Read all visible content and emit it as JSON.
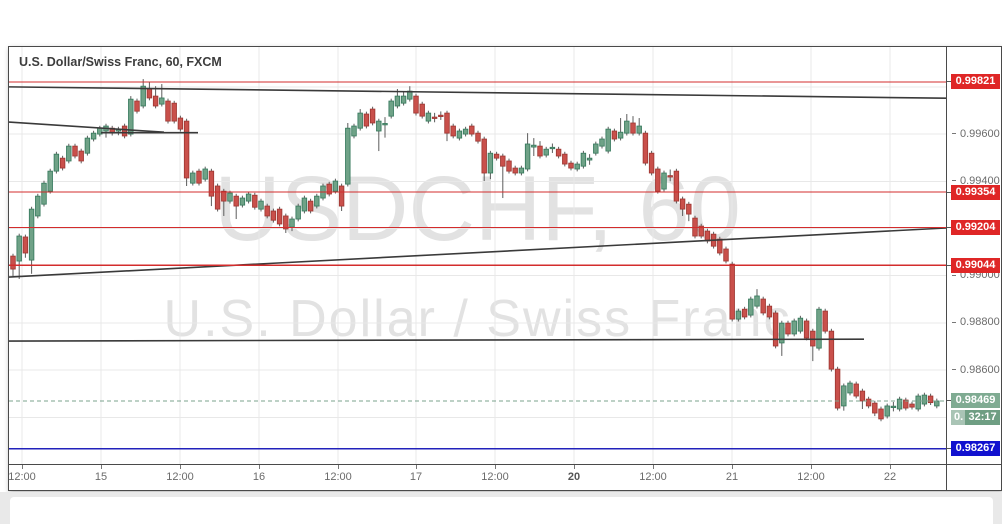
{
  "header": {
    "title": "U.S. Dollar/Swiss Franc, 60, FXCM"
  },
  "watermark": {
    "line1": "USDCHF, 60",
    "line2": "U.S. Dollar / Swiss Franc"
  },
  "colors": {
    "grid": "#e8e8e8",
    "wick": "#5c5c5c",
    "up_fill": "#6fa287",
    "up_border": "#33775a",
    "down_fill": "#c9504b",
    "down_border": "#9c3530",
    "trendline": "#3a3a3a",
    "level_red": "#d32c2c",
    "level_blue": "#2222bb",
    "current_dash": "#7ba38e",
    "badge_red": "#df2626",
    "badge_green": "#7fab92",
    "badge_blue": "#1111cf",
    "countdown_bg": "#a9c4b5",
    "countdown_box": "#6f9e83",
    "axis_text": "#6b6b6b"
  },
  "chart_data": {
    "type": "candlestick",
    "title": "U.S. Dollar/Swiss Franc, 60, FXCM",
    "symbol": "USDCHF",
    "timeframe": "60",
    "exchange": "FXCM",
    "ylim": [
      0.98202,
      0.99969
    ],
    "grid": {
      "h_prices": [
        0.998,
        0.996,
        0.994,
        0.992,
        0.99,
        0.988,
        0.986,
        0.984
      ],
      "v_x": [
        13,
        92,
        171,
        250,
        329,
        407,
        486,
        565,
        644,
        723,
        802,
        881
      ]
    },
    "price_axis_labels": [
      {
        "text": "0.99800",
        "price": 0.998
      },
      {
        "text": "0.99600",
        "price": 0.996
      },
      {
        "text": "0.99400",
        "price": 0.994
      },
      {
        "text": "0.99200",
        "price": 0.992
      },
      {
        "text": "0.99000",
        "price": 0.99
      },
      {
        "text": "0.98800",
        "price": 0.988
      },
      {
        "text": "0.98600",
        "price": 0.986
      },
      {
        "text": "0.98400",
        "price": 0.984
      }
    ],
    "time_axis_labels": [
      {
        "text": "12:00",
        "x": 13,
        "bold": false
      },
      {
        "text": "15",
        "x": 92,
        "bold": false
      },
      {
        "text": "12:00",
        "x": 171,
        "bold": false
      },
      {
        "text": "16",
        "x": 250,
        "bold": false
      },
      {
        "text": "12:00",
        "x": 329,
        "bold": false
      },
      {
        "text": "17",
        "x": 407,
        "bold": false
      },
      {
        "text": "12:00",
        "x": 486,
        "bold": false
      },
      {
        "text": "20",
        "x": 565,
        "bold": true
      },
      {
        "text": "12:00",
        "x": 644,
        "bold": false
      },
      {
        "text": "21",
        "x": 723,
        "bold": false
      },
      {
        "text": "12:00",
        "x": 802,
        "bold": false
      },
      {
        "text": "22",
        "x": 881,
        "bold": false
      }
    ],
    "levels": [
      {
        "price": 0.99821,
        "style": "red"
      },
      {
        "price": 0.99354,
        "style": "red"
      },
      {
        "price": 0.99204,
        "style": "red"
      },
      {
        "price": 0.99044,
        "style": "red"
      },
      {
        "price": 0.98267,
        "style": "blue"
      },
      {
        "price": 0.98469,
        "style": "current"
      }
    ],
    "badges": [
      {
        "label": "0.99821",
        "price": 0.99821,
        "style": "red"
      },
      {
        "label": "0.99354",
        "price": 0.99354,
        "style": "red"
      },
      {
        "label": "0.99204",
        "price": 0.99204,
        "style": "red"
      },
      {
        "label": "0.99044",
        "price": 0.99044,
        "style": "red"
      },
      {
        "label": "0.98469",
        "price": 0.98469,
        "style": "green"
      },
      {
        "label": "0.98267",
        "price": 0.98267,
        "style": "blue"
      }
    ],
    "current": {
      "price": 0.98469,
      "countdown": "32:17",
      "partial_label": "0.",
      "countdown_price": 0.98397
    },
    "trendlines": [
      {
        "x1": 0,
        "p1": 0.998,
        "x2": 937,
        "p2": 0.99752
      },
      {
        "x1": 0,
        "p1": 0.99651,
        "x2": 155,
        "p2": 0.99608
      },
      {
        "x1": 92,
        "p1": 0.99606,
        "x2": 189,
        "p2": 0.99606
      },
      {
        "x1": 0,
        "p1": 0.98994,
        "x2": 937,
        "p2": 0.99202
      },
      {
        "x1": 0,
        "p1": 0.98723,
        "x2": 855,
        "p2": 0.98731
      }
    ],
    "candle_layout": {
      "x0": 4,
      "dx": 6.2,
      "body_w": 4.6
    },
    "ohlc": [
      [
        0.99083,
        0.99093,
        0.98998,
        0.99028
      ],
      [
        0.99062,
        0.99178,
        0.98986,
        0.99168
      ],
      [
        0.99164,
        0.99174,
        0.99076,
        0.99096
      ],
      [
        0.99066,
        0.99292,
        0.99008,
        0.99282
      ],
      [
        0.99253,
        0.99347,
        0.99243,
        0.99337
      ],
      [
        0.99303,
        0.99402,
        0.99293,
        0.99392
      ],
      [
        0.99358,
        0.99453,
        0.99348,
        0.99443
      ],
      [
        0.99443,
        0.99525,
        0.99433,
        0.99515
      ],
      [
        0.99498,
        0.99508,
        0.99446,
        0.99456
      ],
      [
        0.99486,
        0.99559,
        0.99476,
        0.99549
      ],
      [
        0.99549,
        0.99559,
        0.99497,
        0.99507
      ],
      [
        0.99528,
        0.99538,
        0.99476,
        0.99486
      ],
      [
        0.99519,
        0.99593,
        0.99509,
        0.99583
      ],
      [
        0.99579,
        0.99614,
        0.99569,
        0.99604
      ],
      [
        0.996,
        0.99635,
        0.9959,
        0.99625
      ],
      [
        0.99613,
        0.99644,
        0.99585,
        0.99634
      ],
      [
        0.99625,
        0.99635,
        0.99594,
        0.99604
      ],
      [
        0.99613,
        0.99631,
        0.99595,
        0.99621
      ],
      [
        0.99634,
        0.99644,
        0.99582,
        0.99592
      ],
      [
        0.996,
        0.99761,
        0.9959,
        0.99748
      ],
      [
        0.9974,
        0.9975,
        0.99687,
        0.99697
      ],
      [
        0.99719,
        0.99833,
        0.99709,
        0.99803
      ],
      [
        0.99791,
        0.99821,
        0.99743,
        0.99753
      ],
      [
        0.99761,
        0.99803,
        0.99709,
        0.99719
      ],
      [
        0.99727,
        0.99812,
        0.99717,
        0.99753
      ],
      [
        0.9974,
        0.9975,
        0.99645,
        0.99655
      ],
      [
        0.99731,
        0.99741,
        0.99645,
        0.99655
      ],
      [
        0.99668,
        0.99678,
        0.99611,
        0.99621
      ],
      [
        0.99655,
        0.99665,
        0.9938,
        0.99414
      ],
      [
        0.99392,
        0.99445,
        0.99382,
        0.99435
      ],
      [
        0.99443,
        0.99453,
        0.99382,
        0.99392
      ],
      [
        0.99409,
        0.99462,
        0.99399,
        0.99452
      ],
      [
        0.99443,
        0.99453,
        0.99295,
        0.99337
      ],
      [
        0.9938,
        0.9939,
        0.99272,
        0.99282
      ],
      [
        0.99358,
        0.99368,
        0.99253,
        0.99316
      ],
      [
        0.99316,
        0.9936,
        0.99306,
        0.9935
      ],
      [
        0.99337,
        0.99347,
        0.9924,
        0.99295
      ],
      [
        0.99299,
        0.99339,
        0.99289,
        0.99329
      ],
      [
        0.99316,
        0.99356,
        0.99306,
        0.99346
      ],
      [
        0.99341,
        0.99351,
        0.9928,
        0.9929
      ],
      [
        0.99282,
        0.99326,
        0.99272,
        0.99316
      ],
      [
        0.99295,
        0.99305,
        0.99243,
        0.99253
      ],
      [
        0.99274,
        0.99284,
        0.99225,
        0.99235
      ],
      [
        0.99282,
        0.99292,
        0.99209,
        0.99219
      ],
      [
        0.99253,
        0.99263,
        0.99181,
        0.99198
      ],
      [
        0.99206,
        0.9925,
        0.99189,
        0.9924
      ],
      [
        0.9924,
        0.99305,
        0.9923,
        0.99295
      ],
      [
        0.99274,
        0.99339,
        0.99264,
        0.99329
      ],
      [
        0.99316,
        0.99326,
        0.99264,
        0.99274
      ],
      [
        0.99295,
        0.99347,
        0.99285,
        0.99337
      ],
      [
        0.99329,
        0.9939,
        0.99319,
        0.9938
      ],
      [
        0.99388,
        0.99398,
        0.99336,
        0.99346
      ],
      [
        0.99358,
        0.99411,
        0.99348,
        0.99401
      ],
      [
        0.9938,
        0.9939,
        0.99274,
        0.99295
      ],
      [
        0.99388,
        0.99647,
        0.99378,
        0.99625
      ],
      [
        0.99592,
        0.99644,
        0.99582,
        0.99634
      ],
      [
        0.99625,
        0.99706,
        0.99615,
        0.99689
      ],
      [
        0.99685,
        0.99695,
        0.99624,
        0.99634
      ],
      [
        0.99706,
        0.99716,
        0.99637,
        0.99647
      ],
      [
        0.99613,
        0.99665,
        0.99528,
        0.99655
      ],
      [
        0.9964,
        0.99672,
        0.99585,
        0.99645
      ],
      [
        0.99676,
        0.9975,
        0.99666,
        0.9974
      ],
      [
        0.99719,
        0.99791,
        0.99709,
        0.99761
      ],
      [
        0.99731,
        0.99782,
        0.99721,
        0.99761
      ],
      [
        0.99748,
        0.99803,
        0.99738,
        0.99782
      ],
      [
        0.99761,
        0.99771,
        0.99679,
        0.99689
      ],
      [
        0.99727,
        0.99737,
        0.99666,
        0.99676
      ],
      [
        0.99655,
        0.99699,
        0.99645,
        0.99689
      ],
      [
        0.99672,
        0.9969,
        0.9965,
        0.99668
      ],
      [
        0.9968,
        0.99696,
        0.9966,
        0.99676
      ],
      [
        0.99689,
        0.99699,
        0.9957,
        0.99604
      ],
      [
        0.99634,
        0.99644,
        0.99582,
        0.99592
      ],
      [
        0.99583,
        0.99623,
        0.99573,
        0.99613
      ],
      [
        0.996,
        0.99631,
        0.9959,
        0.99621
      ],
      [
        0.99634,
        0.99644,
        0.9959,
        0.996
      ],
      [
        0.99604,
        0.99614,
        0.9956,
        0.9957
      ],
      [
        0.99579,
        0.99589,
        0.99401,
        0.99435
      ],
      [
        0.99435,
        0.99529,
        0.99409,
        0.99519
      ],
      [
        0.99515,
        0.99525,
        0.99488,
        0.99498
      ],
      [
        0.99507,
        0.99517,
        0.99329,
        0.99464
      ],
      [
        0.99486,
        0.99496,
        0.99433,
        0.99443
      ],
      [
        0.99456,
        0.99466,
        0.99425,
        0.99435
      ],
      [
        0.99435,
        0.99466,
        0.99425,
        0.99456
      ],
      [
        0.99452,
        0.99604,
        0.99442,
        0.99558
      ],
      [
        0.99545,
        0.99583,
        0.99507,
        0.99553
      ],
      [
        0.99549,
        0.9957,
        0.99497,
        0.99507
      ],
      [
        0.99511,
        0.99546,
        0.99501,
        0.99536
      ],
      [
        0.99538,
        0.9956,
        0.9952,
        0.99544
      ],
      [
        0.99536,
        0.99546,
        0.99497,
        0.99507
      ],
      [
        0.99515,
        0.99525,
        0.99463,
        0.99473
      ],
      [
        0.99477,
        0.99487,
        0.99446,
        0.99456
      ],
      [
        0.99452,
        0.99483,
        0.99442,
        0.99473
      ],
      [
        0.99464,
        0.99529,
        0.99454,
        0.99519
      ],
      [
        0.9949,
        0.99515,
        0.9947,
        0.99498
      ],
      [
        0.99519,
        0.99568,
        0.99509,
        0.99558
      ],
      [
        0.99549,
        0.99589,
        0.99539,
        0.99579
      ],
      [
        0.99528,
        0.99631,
        0.99518,
        0.99621
      ],
      [
        0.99613,
        0.99623,
        0.99569,
        0.99579
      ],
      [
        0.99583,
        0.99668,
        0.99573,
        0.99608
      ],
      [
        0.99604,
        0.99685,
        0.99594,
        0.99655
      ],
      [
        0.99647,
        0.99676,
        0.99594,
        0.99604
      ],
      [
        0.99604,
        0.99668,
        0.99594,
        0.99634
      ],
      [
        0.99604,
        0.99614,
        0.99467,
        0.99477
      ],
      [
        0.99519,
        0.99529,
        0.99425,
        0.99435
      ],
      [
        0.99452,
        0.99462,
        0.99348,
        0.99358
      ],
      [
        0.99367,
        0.99445,
        0.99357,
        0.99435
      ],
      [
        0.99424,
        0.9945,
        0.994,
        0.9942
      ],
      [
        0.99443,
        0.99453,
        0.99306,
        0.99316
      ],
      [
        0.99325,
        0.99335,
        0.99253,
        0.99282
      ],
      [
        0.99303,
        0.99313,
        0.99231,
        0.99261
      ],
      [
        0.99244,
        0.99254,
        0.99158,
        0.99168
      ],
      [
        0.9921,
        0.9922,
        0.99158,
        0.99168
      ],
      [
        0.99189,
        0.99199,
        0.99137,
        0.99147
      ],
      [
        0.99176,
        0.99186,
        0.99115,
        0.99125
      ],
      [
        0.99155,
        0.99165,
        0.99086,
        0.99096
      ],
      [
        0.99113,
        0.99123,
        0.99052,
        0.99062
      ],
      [
        0.99049,
        0.99059,
        0.98806,
        0.98816
      ],
      [
        0.98816,
        0.9886,
        0.98806,
        0.9885
      ],
      [
        0.98858,
        0.98868,
        0.98815,
        0.98825
      ],
      [
        0.98833,
        0.98911,
        0.98823,
        0.98901
      ],
      [
        0.98871,
        0.98943,
        0.98861,
        0.98914
      ],
      [
        0.98901,
        0.98911,
        0.98832,
        0.98842
      ],
      [
        0.98871,
        0.98881,
        0.98815,
        0.98825
      ],
      [
        0.98842,
        0.98852,
        0.98692,
        0.98702
      ],
      [
        0.98715,
        0.98809,
        0.9866,
        0.98799
      ],
      [
        0.98799,
        0.98809,
        0.98743,
        0.98753
      ],
      [
        0.98753,
        0.98818,
        0.98743,
        0.98808
      ],
      [
        0.98765,
        0.9883,
        0.98755,
        0.9882
      ],
      [
        0.98808,
        0.98818,
        0.98726,
        0.98736
      ],
      [
        0.98765,
        0.98775,
        0.98638,
        0.98702
      ],
      [
        0.98693,
        0.98868,
        0.98683,
        0.98858
      ],
      [
        0.9885,
        0.9886,
        0.98755,
        0.98765
      ],
      [
        0.98765,
        0.98775,
        0.98594,
        0.98604
      ],
      [
        0.98604,
        0.98614,
        0.98429,
        0.98439
      ],
      [
        0.98448,
        0.98543,
        0.98428,
        0.98533
      ],
      [
        0.98503,
        0.98555,
        0.98493,
        0.98545
      ],
      [
        0.98541,
        0.98551,
        0.9848,
        0.9849
      ],
      [
        0.98511,
        0.98521,
        0.98435,
        0.98469
      ],
      [
        0.98477,
        0.98487,
        0.98438,
        0.98448
      ],
      [
        0.9846,
        0.9847,
        0.98405,
        0.98418
      ],
      [
        0.98435,
        0.98445,
        0.98383,
        0.98393
      ],
      [
        0.98405,
        0.98458,
        0.98395,
        0.98448
      ],
      [
        0.98443,
        0.98465,
        0.98425,
        0.98447
      ],
      [
        0.98435,
        0.98487,
        0.98425,
        0.98477
      ],
      [
        0.98473,
        0.98483,
        0.98429,
        0.98439
      ],
      [
        0.98456,
        0.98466,
        0.98433,
        0.98443
      ],
      [
        0.98435,
        0.985,
        0.98425,
        0.9849
      ],
      [
        0.98456,
        0.98504,
        0.98446,
        0.98494
      ],
      [
        0.9849,
        0.985,
        0.98452,
        0.98462
      ],
      [
        0.98448,
        0.98479,
        0.98438,
        0.98469
      ]
    ]
  }
}
